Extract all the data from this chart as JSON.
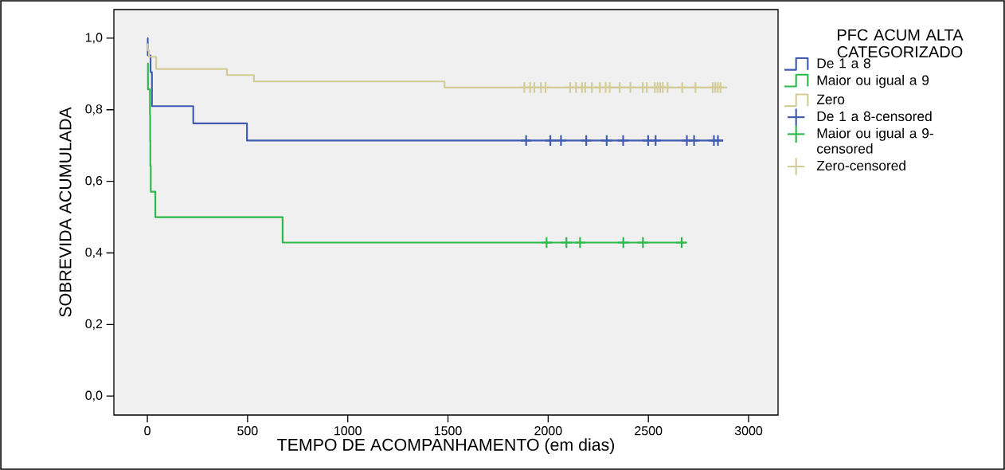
{
  "chart_data": {
    "type": "step",
    "legend_title": "PFC ACUM ALTA CATEGORIZADO",
    "xlabel": "TEMPO DE ACOMPANHAMENTO (em dias)",
    "ylabel": "SOBREVIDA ACUMULADA",
    "xlim": [
      -167,
      3147
    ],
    "ylim": [
      -0.053,
      1.08
    ],
    "xticks": [
      0,
      500,
      1000,
      1500,
      2000,
      2500,
      3000
    ],
    "yticks": [
      {
        "value": 0,
        "label": "0,0"
      },
      {
        "value": 0.2,
        "label": "0,2"
      },
      {
        "value": 0.4,
        "label": "0,4"
      },
      {
        "value": 0.6,
        "label": "0,6"
      },
      {
        "value": 0.8,
        "label": "0,8"
      },
      {
        "value": 1,
        "label": "1,0"
      }
    ],
    "legend": "right",
    "grid": false,
    "series": [
      {
        "name": "De 1 a 8",
        "color": "#3f5ab0",
        "x": [
          0,
          2,
          16,
          23,
          229,
          497,
          2873
        ],
        "values": [
          1.0,
          0.952,
          0.905,
          0.81,
          0.762,
          0.714,
          0.714
        ]
      },
      {
        "name": "Maior ou igual a 9",
        "color": "#2db84a",
        "x": [
          0,
          3,
          13,
          14,
          15,
          17,
          40,
          675,
          2688
        ],
        "values": [
          0.929,
          0.857,
          0.786,
          0.714,
          0.643,
          0.571,
          0.5,
          0.429,
          0.429
        ]
      },
      {
        "name": "Zero",
        "color": "#d4cc96",
        "x": [
          0,
          2,
          8,
          44,
          397,
          532,
          1483,
          2893
        ],
        "values": [
          0.983,
          0.966,
          0.948,
          0.914,
          0.897,
          0.879,
          0.862,
          0.862
        ]
      },
      {
        "name": "De 1 a 8-censored",
        "type": "scatter",
        "marker": "cross",
        "color": "#3f5ab0",
        "x": [
          1890,
          2011,
          2064,
          2190,
          2292,
          2374,
          2499,
          2536,
          2692,
          2728,
          2827,
          2847
        ],
        "values": [
          0.714,
          0.714,
          0.714,
          0.714,
          0.714,
          0.714,
          0.714,
          0.714,
          0.714,
          0.714,
          0.714,
          0.714
        ]
      },
      {
        "name": "Maior ou igual a 9-censored",
        "type": "scatter",
        "marker": "cross",
        "color": "#2db84a",
        "x": [
          1992,
          2091,
          2159,
          2375,
          2473,
          2666
        ],
        "values": [
          0.429,
          0.429,
          0.429,
          0.429,
          0.429,
          0.429
        ]
      },
      {
        "name": "Zero-censored",
        "type": "scatter",
        "marker": "cross",
        "color": "#d4cc96",
        "x": [
          1881,
          1910,
          1931,
          1964,
          1987,
          2110,
          2139,
          2169,
          2185,
          2218,
          2258,
          2287,
          2307,
          2357,
          2410,
          2472,
          2492,
          2532,
          2546,
          2559,
          2572,
          2596,
          2669,
          2735,
          2821,
          2834,
          2847,
          2860
        ],
        "values": [
          0.862,
          0.862,
          0.862,
          0.862,
          0.862,
          0.862,
          0.862,
          0.862,
          0.862,
          0.862,
          0.862,
          0.862,
          0.862,
          0.862,
          0.862,
          0.862,
          0.862,
          0.862,
          0.862,
          0.862,
          0.862,
          0.862,
          0.862,
          0.862,
          0.862,
          0.862,
          0.862,
          0.862
        ]
      }
    ]
  }
}
